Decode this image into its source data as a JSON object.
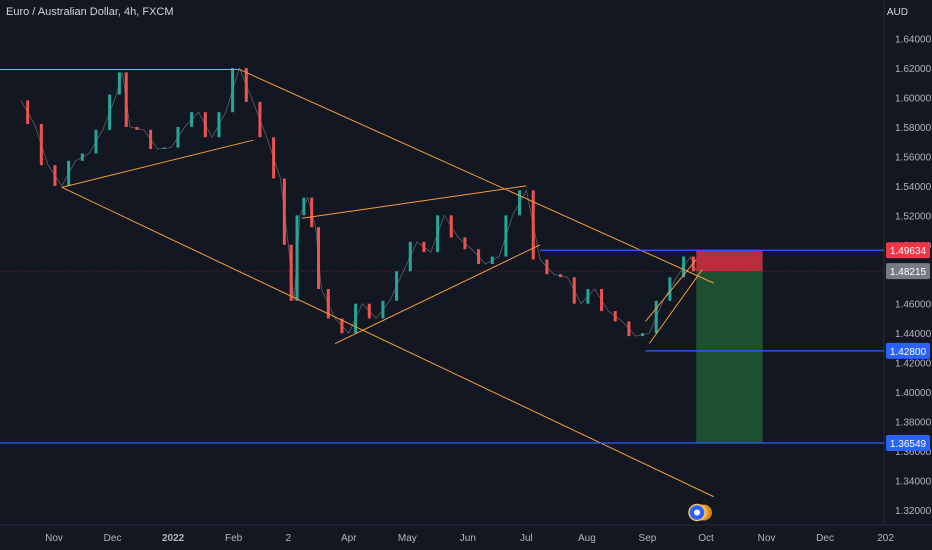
{
  "header": {
    "title": "Euro / Australian Dollar, 4h, FXCM",
    "currency": "AUD"
  },
  "chart_data": {
    "type": "line",
    "title": "Euro / Australian Dollar, 4h, FXCM",
    "ylabel": "AUD",
    "ylim": [
      1.312,
      1.655
    ],
    "y_ticks": [
      "1.64000",
      "1.62000",
      "1.60000",
      "1.58000",
      "1.56000",
      "1.54000",
      "1.52000",
      "1.50000",
      "1.46000",
      "1.44000",
      "1.42000",
      "1.40000",
      "1.38000",
      "1.36000",
      "1.34000",
      "1.32000"
    ],
    "x_ticks": [
      "Nov",
      "Dec",
      "2022",
      "Feb",
      "2",
      "Apr",
      "May",
      "Jun",
      "Jul",
      "Aug",
      "Sep",
      "Oct",
      "Nov",
      "Dec",
      "202"
    ],
    "series": [
      {
        "values": [
          [
            "2021-10-15",
            1.598
          ],
          [
            "2021-10-22",
            1.582
          ],
          [
            "2021-10-29",
            1.554
          ],
          [
            "2021-11-05",
            1.54
          ],
          [
            "2021-11-12",
            1.557
          ],
          [
            "2021-11-19",
            1.562
          ],
          [
            "2021-11-26",
            1.578
          ],
          [
            "2021-12-03",
            1.602
          ],
          [
            "2021-12-06",
            1.617
          ],
          [
            "2021-12-10",
            1.58
          ],
          [
            "2021-12-17",
            1.578
          ],
          [
            "2021-12-24",
            1.565
          ],
          [
            "2021-12-31",
            1.566
          ],
          [
            "2022-01-07",
            1.58
          ],
          [
            "2022-01-14",
            1.59
          ],
          [
            "2022-01-21",
            1.573
          ],
          [
            "2022-01-28",
            1.59
          ],
          [
            "2022-02-04",
            1.62
          ],
          [
            "2022-02-11",
            1.597
          ],
          [
            "2022-02-18",
            1.573
          ],
          [
            "2022-02-25",
            1.545
          ],
          [
            "2022-03-01",
            1.5
          ],
          [
            "2022-03-04",
            1.462
          ],
          [
            "2022-03-07",
            1.52
          ],
          [
            "2022-03-11",
            1.532
          ],
          [
            "2022-03-15",
            1.512
          ],
          [
            "2022-03-18",
            1.47
          ],
          [
            "2022-03-25",
            1.45
          ],
          [
            "2022-04-01",
            1.44
          ],
          [
            "2022-04-08",
            1.46
          ],
          [
            "2022-04-15",
            1.45
          ],
          [
            "2022-04-22",
            1.462
          ],
          [
            "2022-04-29",
            1.482
          ],
          [
            "2022-05-06",
            1.502
          ],
          [
            "2022-05-13",
            1.495
          ],
          [
            "2022-05-20",
            1.52
          ],
          [
            "2022-05-27",
            1.505
          ],
          [
            "2022-06-03",
            1.497
          ],
          [
            "2022-06-10",
            1.487
          ],
          [
            "2022-06-17",
            1.492
          ],
          [
            "2022-06-24",
            1.52
          ],
          [
            "2022-07-01",
            1.537
          ],
          [
            "2022-07-08",
            1.49
          ],
          [
            "2022-07-15",
            1.48
          ],
          [
            "2022-07-22",
            1.478
          ],
          [
            "2022-07-29",
            1.46
          ],
          [
            "2022-08-05",
            1.47
          ],
          [
            "2022-08-12",
            1.455
          ],
          [
            "2022-08-19",
            1.448
          ],
          [
            "2022-08-26",
            1.438
          ],
          [
            "2022-09-02",
            1.44
          ],
          [
            "2022-09-09",
            1.462
          ],
          [
            "2022-09-16",
            1.478
          ],
          [
            "2022-09-23",
            1.492
          ],
          [
            "2022-09-26",
            1.482
          ]
        ]
      }
    ],
    "trend_lines": [
      {
        "from": [
          "2021-10-01",
          1.619
        ],
        "to": [
          "2022-02-04",
          1.619
        ]
      },
      {
        "from": [
          "2022-02-04",
          1.619
        ],
        "to": [
          "2022-10-05",
          1.474
        ]
      },
      {
        "from": [
          "2021-11-05",
          1.539
        ],
        "to": [
          "2022-10-05",
          1.329
        ]
      },
      {
        "from": [
          "2021-11-05",
          1.539
        ],
        "to": [
          "2022-02-11",
          1.571
        ]
      },
      {
        "from": [
          "2022-03-08",
          1.518
        ],
        "to": [
          "2022-07-01",
          1.54
        ]
      },
      {
        "from": [
          "2022-03-25",
          1.433
        ],
        "to": [
          "2022-07-08",
          1.5
        ]
      },
      {
        "from": [
          "2022-08-31",
          1.448
        ],
        "to": [
          "2022-09-26",
          1.49
        ]
      },
      {
        "from": [
          "2022-09-02",
          1.433
        ],
        "to": [
          "2022-09-29",
          1.483
        ]
      }
    ],
    "horizontal_lines": [
      {
        "from": [
          "2022-07-08",
          1.4963
        ],
        "to": "right-edge",
        "color": "#2962ff"
      },
      {
        "from": [
          "2022-08-31",
          1.428
        ],
        "to": "right-edge",
        "color": "#2962ff"
      },
      {
        "from": "left-edge",
        "to": "right-edge",
        "value": 1.36549,
        "color": "#2962ff"
      }
    ],
    "position": {
      "side": "short",
      "start": "2022-09-26",
      "end": "2022-10-30",
      "entry": 1.48215,
      "stop": 1.49634,
      "target": 1.36549
    },
    "price_labels": [
      {
        "text": "1.49634",
        "value": 1.49634,
        "color": "#f23645"
      },
      {
        "text": "1.48215",
        "value": 1.48215,
        "color": "#787b86"
      },
      {
        "text": "1.42800",
        "value": 1.428,
        "color": "#2962ff"
      },
      {
        "text": "1.36549",
        "value": 1.36549,
        "color": "#2962ff"
      }
    ],
    "colors": {
      "background": "#131722",
      "trend_line": "#f59d38",
      "level_line": "#2962ff",
      "stop_zone": "#f23645",
      "target_zone": "#1e5a33",
      "up_candle": "#26a69a",
      "down_candle": "#ef5350"
    }
  }
}
